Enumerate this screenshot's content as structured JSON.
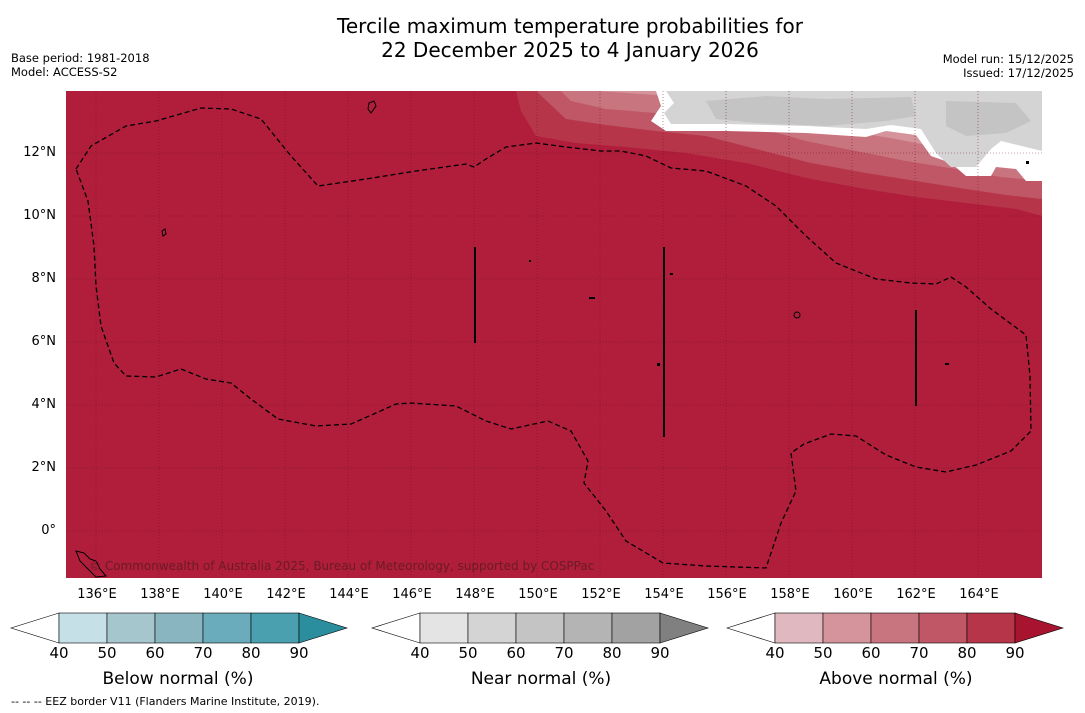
{
  "title": {
    "line1": "Tercile maximum temperature probabilities for",
    "line2": "22 December 2025 to 4 January 2026"
  },
  "info_left": {
    "base_period": "Base period: 1981-2018",
    "model": "Model: ACCESS-S2"
  },
  "info_right": {
    "model_run": "Model run: 15/12/2025",
    "issued": "Issued: 17/12/2025"
  },
  "map": {
    "latitude_labels": [
      "12°N",
      "10°N",
      "8°N",
      "6°N",
      "4°N",
      "2°N",
      "0°"
    ],
    "longitude_labels": [
      "136°E",
      "138°E",
      "140°E",
      "142°E",
      "144°E",
      "146°E",
      "148°E",
      "150°E",
      "152°E",
      "154°E",
      "156°E",
      "158°E",
      "160°E",
      "162°E",
      "164°E"
    ],
    "copyright": "© Commonwealth of Australia 2025, Bureau of Meteorology, supported by COSPPac"
  },
  "colorbars": [
    {
      "title": "Below normal (%)",
      "ticks": [
        "40",
        "50",
        "60",
        "70",
        "80",
        "90"
      ],
      "colors": [
        "#ffffff",
        "#c6e0e7",
        "#a5c6cd",
        "#88b5c0",
        "#6aacbb",
        "#4ba0b0",
        "#2b8e9e"
      ]
    },
    {
      "title": "Near normal (%)",
      "ticks": [
        "40",
        "50",
        "60",
        "70",
        "80",
        "90"
      ],
      "colors": [
        "#ffffff",
        "#e4e4e4",
        "#d4d4d4",
        "#c4c4c4",
        "#b4b4b4",
        "#a2a2a2",
        "#808080"
      ]
    },
    {
      "title": "Above normal (%)",
      "ticks": [
        "40",
        "50",
        "60",
        "70",
        "80",
        "90"
      ],
      "colors": [
        "#ffffff",
        "#e0b8bf",
        "#d5939c",
        "#c97580",
        "#bf5767",
        "#b73549",
        "#a8142f"
      ]
    }
  ],
  "footnote": "-- -- -- EEZ border V11 (Flanders Marine Institute, 2019)."
}
